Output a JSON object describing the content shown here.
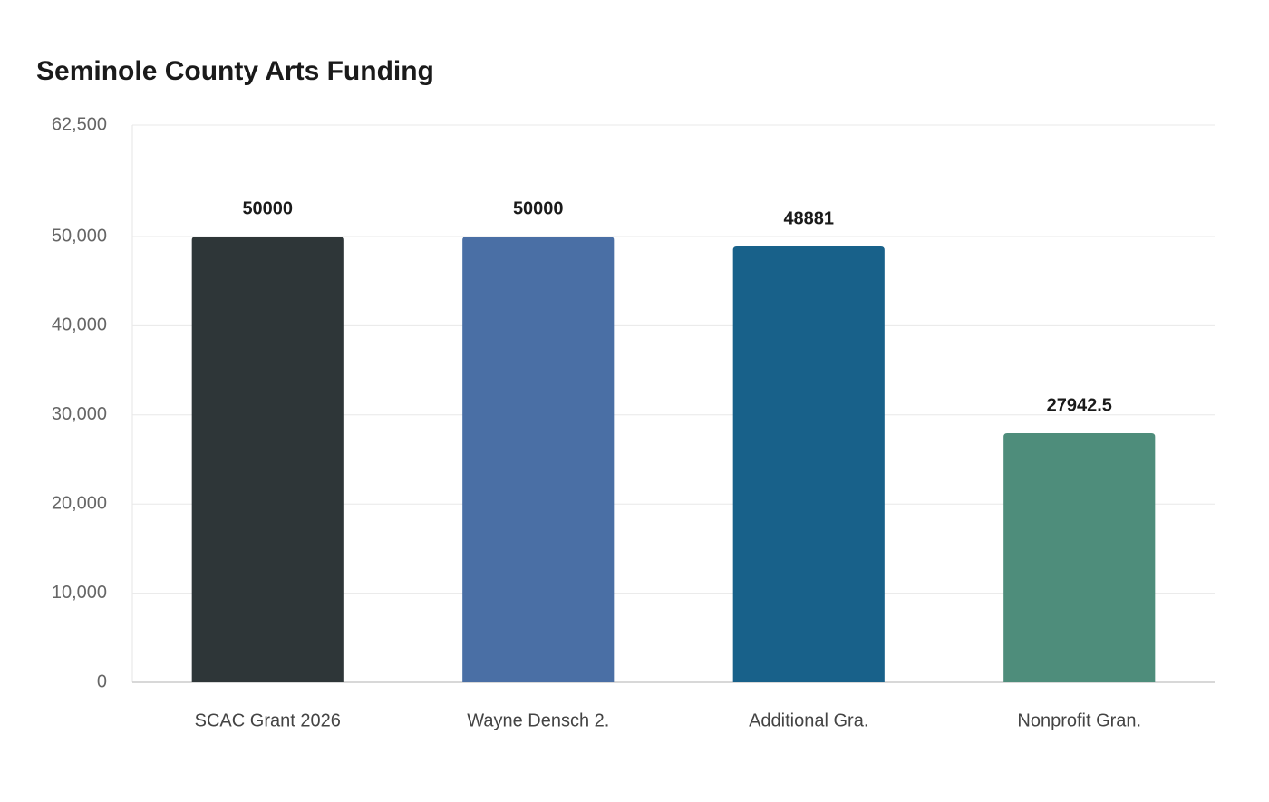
{
  "chart_data": {
    "type": "bar",
    "title": "Seminole County Arts Funding",
    "categories": [
      "SCAC Grant 2026",
      "Wayne Densch 2.",
      "Additional Gra.",
      "Nonprofit Gran."
    ],
    "values": [
      50000,
      50000,
      48881,
      27942.5
    ],
    "colors": [
      "#2e3638",
      "#4a6fa5",
      "#18618a",
      "#4e8d7b"
    ],
    "ylim": [
      0,
      62500
    ],
    "yticks": [
      0,
      {
        "value": 10000,
        "label": "10,000"
      },
      {
        "value": 20000,
        "label": "20,000"
      },
      {
        "value": 30000,
        "label": "30,000"
      },
      {
        "value": 40000,
        "label": "40,000"
      },
      {
        "value": 50000,
        "label": "50,000"
      },
      {
        "value": 62500,
        "label": "62,500"
      }
    ],
    "grid": true
  }
}
